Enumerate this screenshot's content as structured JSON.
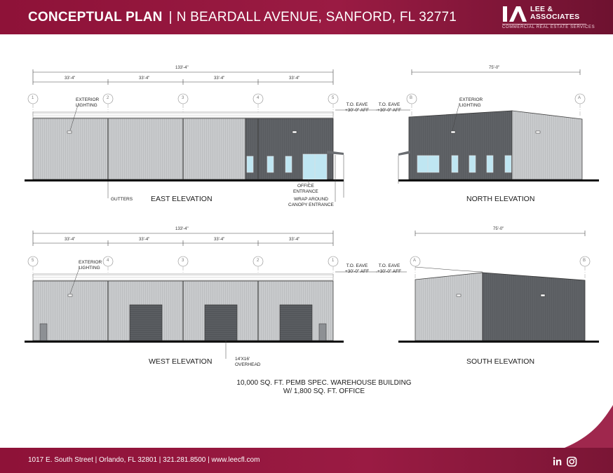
{
  "header": {
    "title_bold": "CONCEPTUAL PLAN",
    "title_rest": "N BEARDALL AVENUE, SANFORD, FL 32771",
    "background": "#9a1b43"
  },
  "logo": {
    "name_line1": "LEE &",
    "name_line2": "ASSOCIATES",
    "tagline": "COMMERCIAL REAL ESTATE SERVICES"
  },
  "footer": {
    "text": "1017 E. South Street  |  Orlando, FL 32801  |  321.281.8500  |  www.leecfl.com",
    "icons": [
      "linkedin-icon",
      "instagram-icon"
    ]
  },
  "east": {
    "title": "EAST ELEVATION",
    "overall_dim": "133'-4\"",
    "bay_dims": [
      "33'-4\"",
      "33'-4\"",
      "33'-4\"",
      "33'-4\""
    ],
    "grid_labels": [
      "1",
      "2",
      "3",
      "4",
      "5"
    ],
    "notes": {
      "lighting": "EXTERIOR\nLIGHTING",
      "gutters": "GUTTERS",
      "office": "OFFICE\nENTRANCE",
      "canopy": "WRAP AROUND\nCANOPY ENTRANCE",
      "eave": "T.O. EAVE\n+30'-0\" AFF"
    }
  },
  "north": {
    "title": "NORTH ELEVATION",
    "overall_dim": "75'-0\"",
    "grid_labels": [
      "B",
      "A"
    ],
    "notes": {
      "lighting": "EXTERIOR\nLIGHTING",
      "eave": "T.O. EAVE\n+30'-0\" AFF"
    }
  },
  "west": {
    "title": "WEST ELEVATION",
    "overall_dim": "133'-4\"",
    "bay_dims": [
      "33'-4\"",
      "33'-4\"",
      "33'-4\"",
      "33'-4\""
    ],
    "grid_labels": [
      "5",
      "4",
      "3",
      "2",
      "1"
    ],
    "notes": {
      "lighting": "EXTERIOR\nLIGHTING",
      "overhead": "14'X16'\nOVERHEAD",
      "eave": "T.O. EAVE\n+30'-0\" AFF"
    }
  },
  "south": {
    "title": "SOUTH ELEVATION",
    "overall_dim": "75'-0\"",
    "grid_labels": [
      "A",
      "B"
    ],
    "notes": {
      "eave": "T.O. EAVE\n+30'-0\" AFF"
    }
  },
  "caption": {
    "line1": "10,000 SQ. FT. PEMB SPEC. WAREHOUSE BUILDING",
    "line2": "W/ 1,800 SQ. FT. OFFICE"
  },
  "colors": {
    "brand": "#9a1b43",
    "light_panel": "#c9cbcd",
    "dark_panel": "#5f6266",
    "glass": "#bfe6f2"
  }
}
